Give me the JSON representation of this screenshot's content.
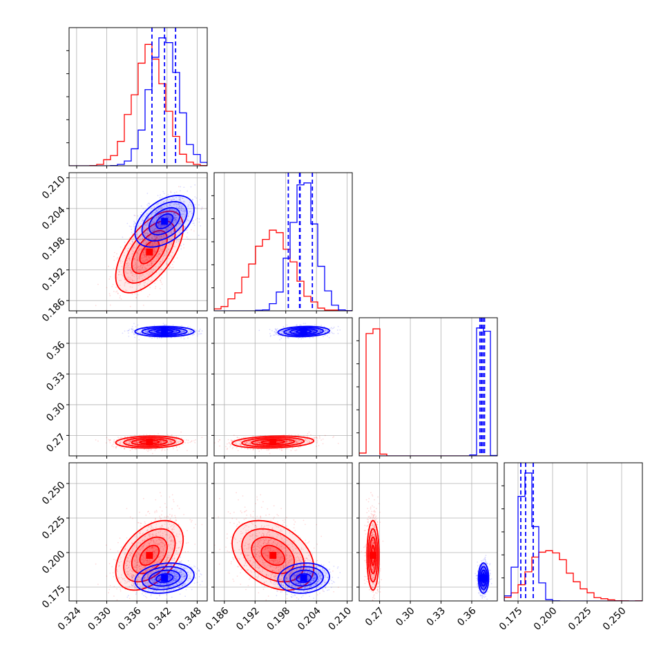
{
  "chart_data": {
    "type": "corner",
    "colors": {
      "red": "#ff0000",
      "blue": "#0000ff"
    },
    "grid": true,
    "parameters": [
      {
        "range": [
          0.3225,
          0.35
        ],
        "ticks": [
          0.324,
          0.33,
          0.336,
          0.342,
          0.348
        ],
        "tick_labels": [
          "0.324",
          "0.330",
          "0.336",
          "0.342",
          "0.348"
        ]
      },
      {
        "range": [
          0.184,
          0.211
        ],
        "ticks": [
          0.186,
          0.192,
          0.198,
          0.204,
          0.21
        ],
        "tick_labels": [
          "0.186",
          "0.192",
          "0.198",
          "0.204",
          "0.210"
        ]
      },
      {
        "range": [
          0.25,
          0.385
        ],
        "ticks": [
          0.27,
          0.3,
          0.33,
          0.36
        ],
        "tick_labels": [
          "0.27",
          "0.30",
          "0.33",
          "0.36"
        ]
      },
      {
        "range": [
          0.165,
          0.265
        ],
        "ticks": [
          0.175,
          0.2,
          0.225,
          0.25
        ],
        "tick_labels": [
          "0.175",
          "0.200",
          "0.225",
          "0.250"
        ]
      }
    ],
    "series": [
      {
        "color": "red",
        "mean": [
          0.3385,
          0.1955,
          0.2635,
          0.198
        ],
        "sd": [
          0.0032,
          0.0038,
          0.0028,
          0.012
        ],
        "corr": [
          [
            0,
            1,
            0.6
          ],
          [
            0,
            3,
            0.45
          ],
          [
            1,
            3,
            -0.35
          ],
          [
            0,
            2,
            0.1
          ],
          [
            1,
            2,
            0.2
          ]
        ],
        "skew": [
          0,
          0,
          0,
          0.5
        ]
      },
      {
        "color": "blue",
        "mean": [
          0.3415,
          0.2015,
          0.3715,
          0.1815
        ],
        "sd": [
          0.0028,
          0.0024,
          0.0024,
          0.0052
        ],
        "corr": [
          [
            0,
            1,
            0.45
          ],
          [
            0,
            3,
            0.2
          ],
          [
            1,
            3,
            0.1
          ],
          [
            1,
            2,
            0.15
          ]
        ],
        "skew": [
          0,
          0,
          0,
          0
        ]
      }
    ],
    "quantile_lines": [
      [
        0.339,
        0.3415,
        0.3437
      ],
      [
        0.1985,
        0.2007,
        0.2032,
        0.2008
      ],
      [
        0.368,
        0.3695,
        0.371,
        0.3725
      ],
      [
        0.177,
        0.1805,
        0.186
      ]
    ]
  }
}
